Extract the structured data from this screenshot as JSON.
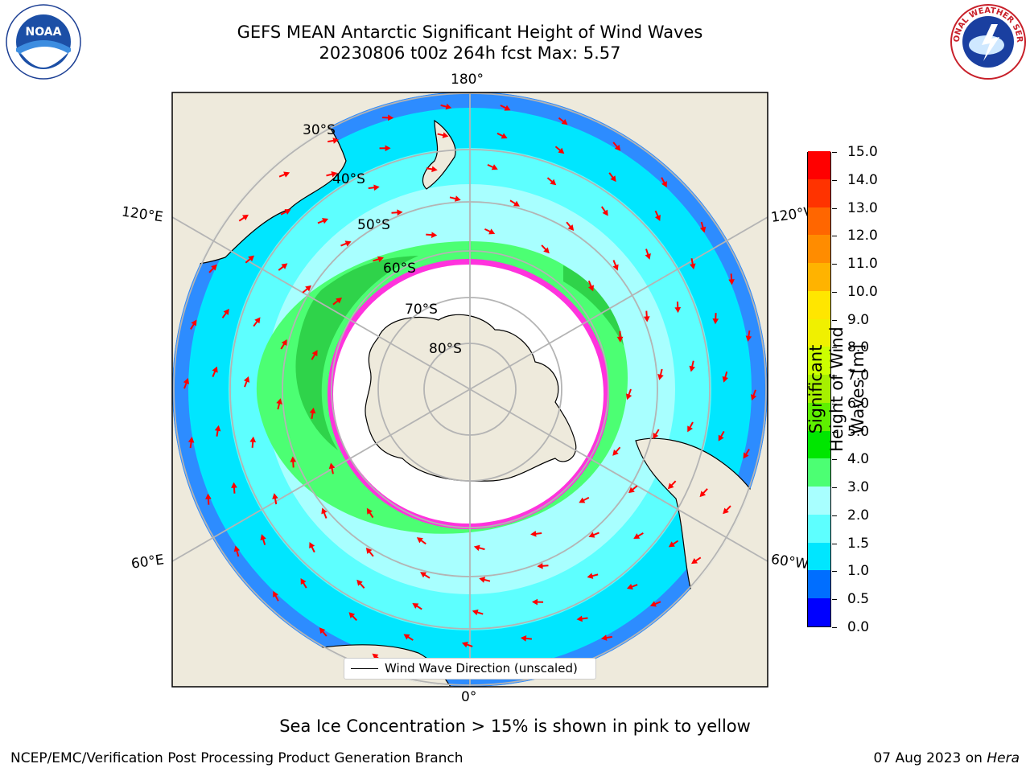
{
  "header": {
    "title_line1": "GEFS MEAN Antarctic Significant Height of Wind Waves",
    "title_line2": "20230806 t00z 264h fcst   Max: 5.57"
  },
  "map": {
    "longitude_labels": {
      "top": "180°",
      "bottom": "0°",
      "upper_left": "120°E",
      "upper_right": "120°W",
      "lower_left": "60°E",
      "lower_right": "60°W"
    },
    "latitude_labels": [
      "30°S",
      "40°S",
      "50°S",
      "60°S",
      "70°S",
      "80°S"
    ],
    "legend_label": "Wind Wave Direction (unscaled)"
  },
  "colorbar": {
    "title": "Significant Height of Wind Waves [m]",
    "tick_labels": [
      "0.0",
      "0.5",
      "1.0",
      "1.5",
      "2.0",
      "3.0",
      "4.0",
      "5.0",
      "6.0",
      "7.0",
      "8.0",
      "9.0",
      "10.0",
      "11.0",
      "12.0",
      "13.0",
      "14.0",
      "15.0"
    ],
    "colors": [
      "#0000ff",
      "#006eff",
      "#00e6ff",
      "#5dffff",
      "#a8ffff",
      "#4cff73",
      "#00e600",
      "#5ef000",
      "#a6f000",
      "#ccff00",
      "#f0f000",
      "#ffe600",
      "#ffb300",
      "#ff8c00",
      "#ff6600",
      "#ff3300",
      "#ff0000"
    ]
  },
  "footer": {
    "note": "Sea Ice Concentration > 15% is shown in pink to yellow",
    "credit": "NCEP/EMC/Verification Post Processing Product Generation Branch",
    "date": "07 Aug 2023 on ",
    "host": "Hera"
  },
  "logos": {
    "left": "noaa-logo",
    "left_text": "NOAA",
    "right": "nws-logo",
    "right_text": "NATIONAL WEATHER SERVICE"
  }
}
